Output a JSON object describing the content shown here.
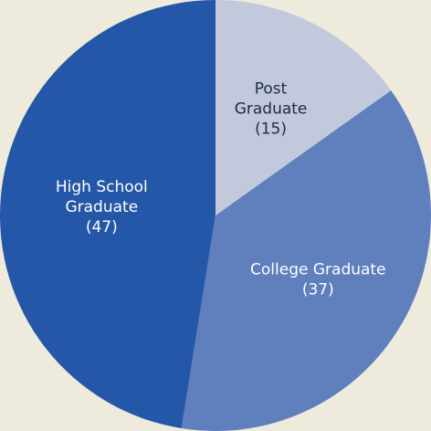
{
  "chart_data": {
    "type": "pie",
    "slices": [
      {
        "label_lines": [
          "Post",
          "Graduate",
          "(15)"
        ],
        "category": "Post Graduate",
        "value": 15,
        "color": "#c3c9dc",
        "text_color": "#1c2a4a"
      },
      {
        "label_lines": [
          "College Graduate",
          "(37)"
        ],
        "category": "College Graduate",
        "value": 37,
        "color": "#5f7fbd",
        "text_color": "#ffffff"
      },
      {
        "label_lines": [
          "High School",
          "Graduate",
          "(47)"
        ],
        "category": "High School Graduate",
        "value": 47,
        "color": "#2557a8",
        "text_color": "#ffffff"
      }
    ],
    "start_position": "12 o'clock",
    "direction": "clockwise",
    "legend": "none"
  },
  "colors": {
    "background": "#eeeadc"
  }
}
